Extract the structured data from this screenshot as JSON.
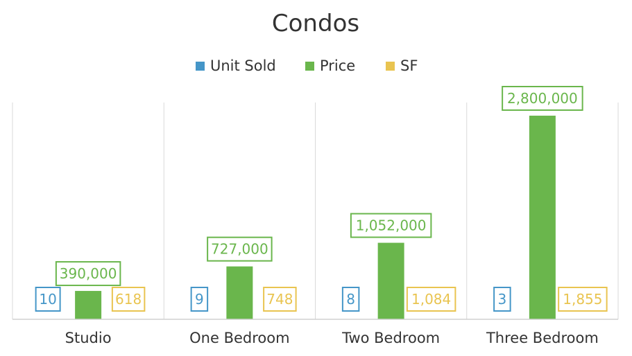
{
  "chart_data": {
    "type": "bar",
    "title": "Condos",
    "categories": [
      "Studio",
      "One Bedroom",
      "Two Bedroom",
      "Three Bedroom"
    ],
    "series": [
      {
        "name": "Unit Sold",
        "color": "#4596c8",
        "values": [
          10,
          9,
          8,
          3
        ],
        "labels": [
          "10",
          "9",
          "8",
          "3"
        ]
      },
      {
        "name": "Price",
        "color": "#6ab64c",
        "values": [
          390000,
          727000,
          1052000,
          2800000
        ],
        "labels": [
          "390,000",
          "727,000",
          "1,052,000",
          "2,800,000"
        ]
      },
      {
        "name": "SF",
        "color": "#e9c450",
        "values": [
          618,
          748,
          1084,
          1855
        ],
        "labels": [
          "618",
          "748",
          "1,084",
          "1,855"
        ]
      }
    ],
    "ylim": [
      0,
      3000000
    ],
    "legend_position": "top",
    "grid": false,
    "data_labels": true
  }
}
